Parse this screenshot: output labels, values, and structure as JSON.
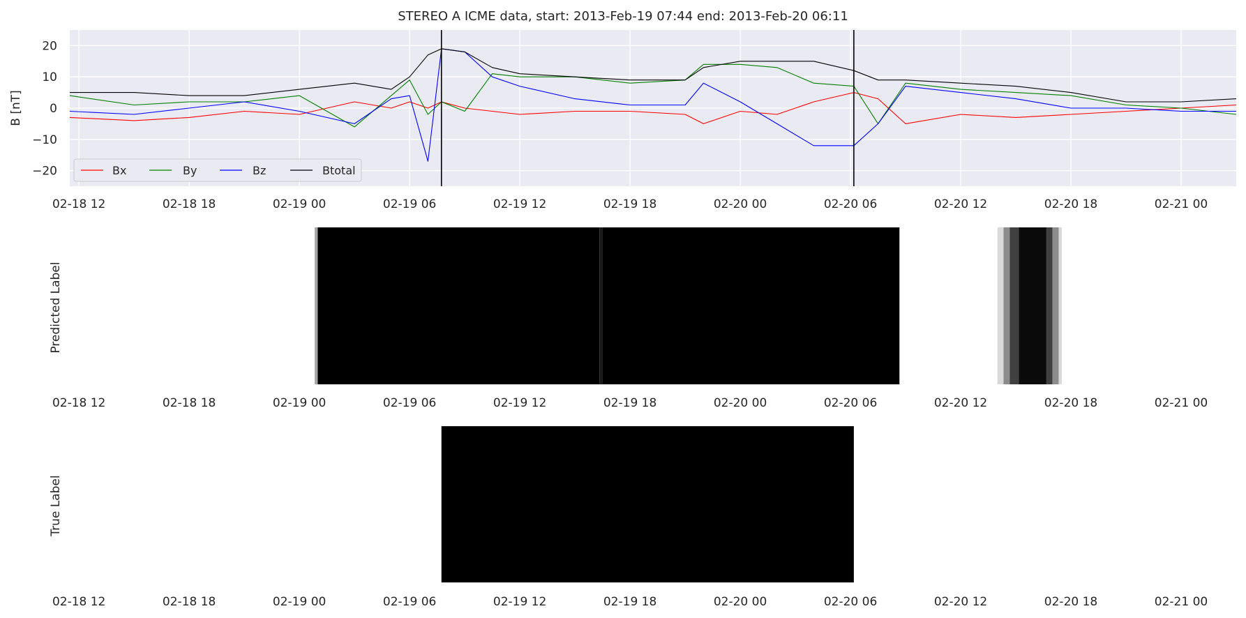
{
  "figure": {
    "title": "STEREO A ICME data, start: 2013-Feb-19 07:44  end: 2013-Feb-20 06:11"
  },
  "chart_data": [
    {
      "type": "line",
      "panel": "magnetic-field",
      "ylabel": "B [nT]",
      "xlim": [
        "2013-02-18 11:30",
        "2013-02-21 03:00"
      ],
      "ylim": [
        -25,
        25
      ],
      "x_ticks": [
        "02-18 12",
        "02-18 18",
        "02-19 00",
        "02-19 06",
        "02-19 12",
        "02-19 18",
        "02-20 00",
        "02-20 06",
        "02-20 12",
        "02-20 18",
        "02-21 00"
      ],
      "y_ticks": [
        20,
        10,
        0,
        -10,
        -20
      ],
      "grid": true,
      "legend_position": "lower-left",
      "x": [
        "2013-02-18 11:30",
        "2013-02-18 15:00",
        "2013-02-18 18:00",
        "2013-02-18 21:00",
        "2013-02-19 00:00",
        "2013-02-19 03:00",
        "2013-02-19 05:00",
        "2013-02-19 06:00",
        "2013-02-19 07:00",
        "2013-02-19 07:44",
        "2013-02-19 09:00",
        "2013-02-19 10:30",
        "2013-02-19 12:00",
        "2013-02-19 15:00",
        "2013-02-19 18:00",
        "2013-02-19 21:00",
        "2013-02-19 22:00",
        "2013-02-20 00:00",
        "2013-02-20 02:00",
        "2013-02-20 04:00",
        "2013-02-20 06:11",
        "2013-02-20 07:30",
        "2013-02-20 09:00",
        "2013-02-20 12:00",
        "2013-02-20 15:00",
        "2013-02-20 18:00",
        "2013-02-20 21:00",
        "2013-02-21 00:00",
        "2013-02-21 03:00"
      ],
      "series": [
        {
          "name": "Bx",
          "color": "#ff0000",
          "values": [
            -3,
            -4,
            -3,
            -1,
            -2,
            2,
            0,
            2,
            0,
            2,
            0,
            -1,
            -2,
            -1,
            -1,
            -2,
            -5,
            -1,
            -2,
            2,
            5,
            3,
            -5,
            -2,
            -3,
            -2,
            -1,
            0,
            1
          ]
        },
        {
          "name": "By",
          "color": "#008000",
          "values": [
            4,
            1,
            2,
            2,
            4,
            -6,
            4,
            9,
            -2,
            2,
            -1,
            11,
            10,
            10,
            8,
            9,
            14,
            14,
            13,
            8,
            7,
            -5,
            8,
            6,
            5,
            4,
            1,
            0,
            -2
          ]
        },
        {
          "name": "Bz",
          "color": "#0000ff",
          "values": [
            -1,
            -2,
            0,
            2,
            -1,
            -5,
            3,
            4,
            -17,
            19,
            18,
            10,
            7,
            3,
            1,
            1,
            8,
            2,
            -5,
            -12,
            -12,
            -5,
            7,
            5,
            3,
            0,
            0,
            -1,
            -1
          ]
        },
        {
          "name": "Btotal",
          "color": "#000000",
          "values": [
            5,
            5,
            4,
            4,
            6,
            8,
            6,
            10,
            17,
            19,
            18,
            13,
            11,
            10,
            9,
            9,
            13,
            15,
            15,
            15,
            12,
            9,
            9,
            8,
            7,
            5,
            2,
            2,
            3
          ]
        }
      ],
      "vertical_lines": [
        "2013-02-19 07:44",
        "2013-02-20 06:11"
      ]
    },
    {
      "type": "heatmap",
      "panel": "predicted",
      "ylabel": "Predicted Label",
      "x_ticks": [
        "02-18 12",
        "02-18 18",
        "02-19 00",
        "02-19 06",
        "02-19 12",
        "02-19 18",
        "02-20 00",
        "02-20 06",
        "02-20 12",
        "02-20 18",
        "02-21 00"
      ],
      "segments": [
        {
          "start": "2013-02-19 00:50",
          "end": "2013-02-19 01:00",
          "value": 0.35
        },
        {
          "start": "2013-02-19 01:00",
          "end": "2013-02-19 16:20",
          "value": 1.0
        },
        {
          "start": "2013-02-19 16:20",
          "end": "2013-02-19 16:30",
          "value": 0.9
        },
        {
          "start": "2013-02-19 16:30",
          "end": "2013-02-20 08:40",
          "value": 1.0
        },
        {
          "start": "2013-02-20 14:00",
          "end": "2013-02-20 14:20",
          "value": 0.15
        },
        {
          "start": "2013-02-20 14:20",
          "end": "2013-02-20 14:40",
          "value": 0.45
        },
        {
          "start": "2013-02-20 14:40",
          "end": "2013-02-20 15:10",
          "value": 0.75
        },
        {
          "start": "2013-02-20 15:10",
          "end": "2013-02-20 16:40",
          "value": 0.96
        },
        {
          "start": "2013-02-20 16:40",
          "end": "2013-02-20 17:00",
          "value": 0.75
        },
        {
          "start": "2013-02-20 17:00",
          "end": "2013-02-20 17:20",
          "value": 0.45
        },
        {
          "start": "2013-02-20 17:20",
          "end": "2013-02-20 17:30",
          "value": 0.15
        }
      ]
    },
    {
      "type": "heatmap",
      "panel": "true",
      "ylabel": "True Label",
      "x_ticks": [
        "02-18 12",
        "02-18 18",
        "02-19 00",
        "02-19 06",
        "02-19 12",
        "02-19 18",
        "02-20 00",
        "02-20 06",
        "02-20 12",
        "02-20 18",
        "02-21 00"
      ],
      "segments": [
        {
          "start": "2013-02-19 07:44",
          "end": "2013-02-20 06:11",
          "value": 1.0
        }
      ]
    }
  ]
}
